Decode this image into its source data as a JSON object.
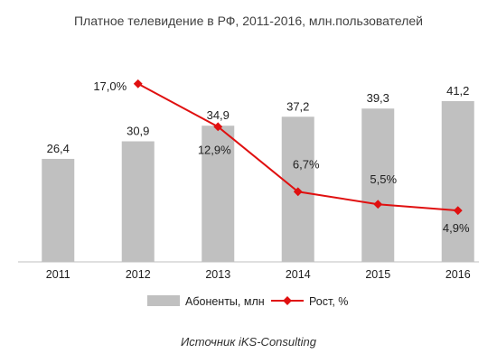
{
  "chart_data": {
    "type": "bar",
    "title": "Платное телевидение в РФ, 2011-2016, млн.пользователей",
    "categories": [
      "2011",
      "2012",
      "2013",
      "2014",
      "2015",
      "2016"
    ],
    "series": [
      {
        "name": "Абоненты, млн",
        "kind": "bar",
        "values": [
          26.4,
          30.9,
          34.9,
          37.2,
          39.3,
          41.2
        ],
        "labels": [
          "26,4",
          "30,9",
          "34,9",
          "37,2",
          "39,3",
          "41,2"
        ],
        "color": "#c0c0c0"
      },
      {
        "name": "Рост, %",
        "kind": "line",
        "x": [
          "2012",
          "2013",
          "2014",
          "2015",
          "2016"
        ],
        "values": [
          17.0,
          12.9,
          6.7,
          5.5,
          4.9
        ],
        "labels": [
          "17,0%",
          "12,9%",
          "6,7%",
          "5,5%",
          "4,9%"
        ],
        "color": "#e01010"
      }
    ],
    "ylim": [
      0,
      50
    ],
    "y2lim": [
      0,
      20
    ],
    "grid": false,
    "legend": "bottom"
  },
  "source": "Источник iKS-Consulting"
}
